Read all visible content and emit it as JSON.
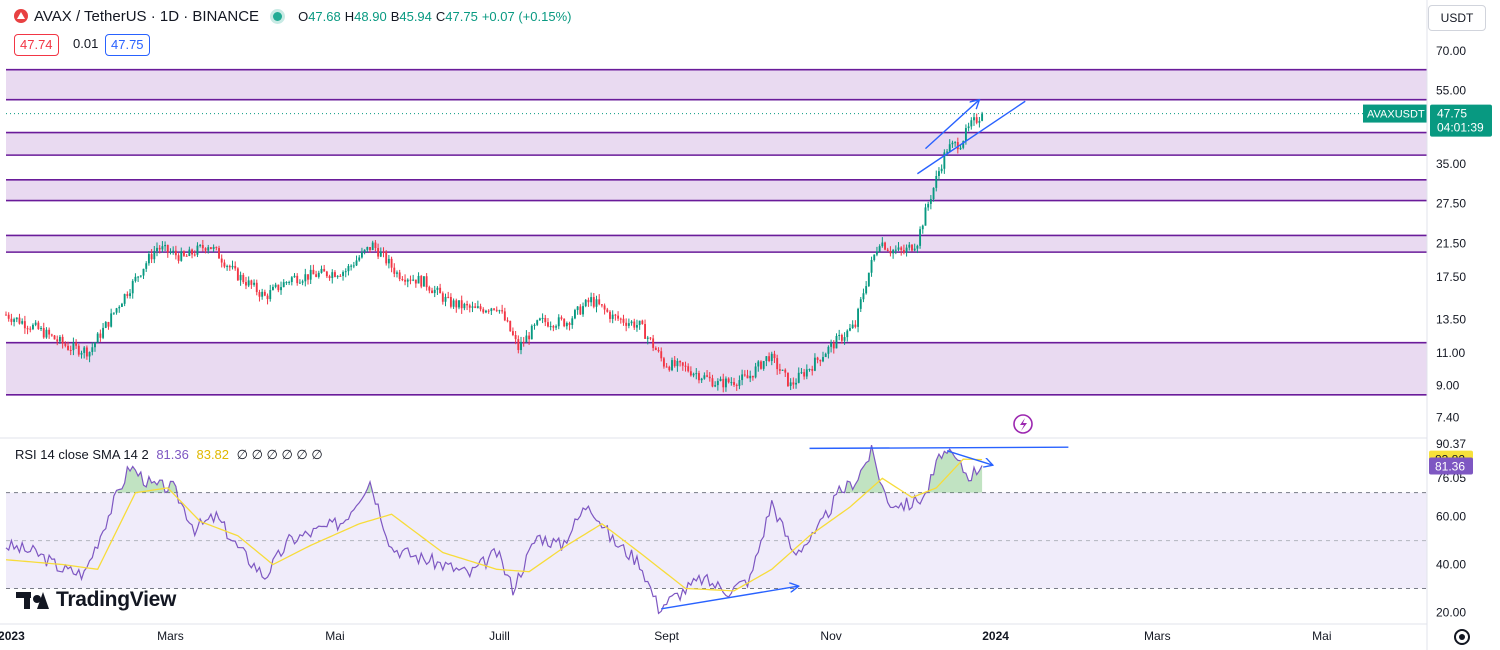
{
  "header": {
    "symbol_title": "AVAX / TetherUS · 1D · BINANCE",
    "o_label": "O",
    "o_value": "47.68",
    "h_label": "H",
    "h_value": "48.90",
    "l_label": "B",
    "l_value": "45.94",
    "c_label": "C",
    "c_value": "47.75",
    "change": "+0.07 (+0.15%)",
    "bid": "47.74",
    "spread": "0.01",
    "ask": "47.75",
    "currency": "USDT",
    "brand": "TradingView"
  },
  "colors": {
    "up": "#089981",
    "down": "#f23645",
    "zone_fill": "#e1cdec",
    "zone_line": "#6a1b9a",
    "drawing": "#2962ff",
    "rsi": "#7e57c2",
    "rsi_ma": "#f7dc3a",
    "rsi_band": "#f0ecfa"
  },
  "chart_data": [
    {
      "type": "candlestick",
      "symbol": "AVAXUSDT",
      "scale": "log",
      "price_axis_ticks": [
        7.4,
        9.0,
        11.0,
        13.5,
        17.5,
        21.5,
        27.5,
        35.0,
        55.0,
        70.0
      ],
      "time_axis_labels": [
        "2023",
        "Mars",
        "Mai",
        "Juill",
        "Sept",
        "Nov",
        "2024",
        "Mars",
        "Mai"
      ],
      "time_axis_dates": [
        "2023-01-01",
        "2023-03-01",
        "2023-05-01",
        "2023-07-01",
        "2023-09-01",
        "2023-11-01",
        "2024-01-01",
        "2024-03-01",
        "2024-05-01"
      ],
      "x_range": [
        "2022-12-30",
        "2024-06-09"
      ],
      "y_range": [
        6.6,
        75
      ],
      "last_price_label": "AVAXUSDT",
      "last_price": "47.75",
      "countdown": "04:01:39",
      "price_path": [
        {
          "date": "2022-12-30",
          "price": 13.9
        },
        {
          "date": "2023-01-10",
          "price": 12.8
        },
        {
          "date": "2023-01-22",
          "price": 11.4
        },
        {
          "date": "2023-01-30",
          "price": 11.1
        },
        {
          "date": "2023-02-06",
          "price": 13.3
        },
        {
          "date": "2023-02-15",
          "price": 16.8
        },
        {
          "date": "2023-02-24",
          "price": 21.0
        },
        {
          "date": "2023-03-06",
          "price": 19.7
        },
        {
          "date": "2023-03-15",
          "price": 21.4
        },
        {
          "date": "2023-03-25",
          "price": 17.9
        },
        {
          "date": "2023-04-05",
          "price": 15.5
        },
        {
          "date": "2023-04-15",
          "price": 17.4
        },
        {
          "date": "2023-04-25",
          "price": 17.8
        },
        {
          "date": "2023-05-05",
          "price": 18.2
        },
        {
          "date": "2023-05-15",
          "price": 21.3
        },
        {
          "date": "2023-05-24",
          "price": 17.9
        },
        {
          "date": "2023-06-03",
          "price": 17.0
        },
        {
          "date": "2023-06-12",
          "price": 15.0
        },
        {
          "date": "2023-06-22",
          "price": 14.3
        },
        {
          "date": "2023-06-30",
          "price": 14.7
        },
        {
          "date": "2023-07-08",
          "price": 11.3
        },
        {
          "date": "2023-07-16",
          "price": 13.3
        },
        {
          "date": "2023-07-26",
          "price": 13.3
        },
        {
          "date": "2023-08-04",
          "price": 15.2
        },
        {
          "date": "2023-08-12",
          "price": 13.7
        },
        {
          "date": "2023-08-22",
          "price": 13.0
        },
        {
          "date": "2023-08-31",
          "price": 10.3
        },
        {
          "date": "2023-09-08",
          "price": 10.0
        },
        {
          "date": "2023-09-20",
          "price": 9.1
        },
        {
          "date": "2023-10-01",
          "price": 9.4
        },
        {
          "date": "2023-10-09",
          "price": 10.8
        },
        {
          "date": "2023-10-17",
          "price": 9.0
        },
        {
          "date": "2023-10-25",
          "price": 10.2
        },
        {
          "date": "2023-11-03",
          "price": 11.8
        },
        {
          "date": "2023-11-10",
          "price": 13.0
        },
        {
          "date": "2023-11-16",
          "price": 19.0
        },
        {
          "date": "2023-11-19",
          "price": 21.9
        },
        {
          "date": "2023-11-23",
          "price": 20.7
        },
        {
          "date": "2023-11-28",
          "price": 20.4
        },
        {
          "date": "2023-12-03",
          "price": 21.8
        },
        {
          "date": "2023-12-09",
          "price": 30.3
        },
        {
          "date": "2023-12-14",
          "price": 38.5
        },
        {
          "date": "2023-12-19",
          "price": 40.0
        },
        {
          "date": "2023-12-23",
          "price": 44.5
        },
        {
          "date": "2023-12-27",
          "price": 47.75
        }
      ],
      "zones": [
        {
          "top": 62.5,
          "bottom": 52.0
        },
        {
          "top": 42.5,
          "bottom": 37.0
        },
        {
          "top": 31.8,
          "bottom": 28.0
        },
        {
          "top": 22.6,
          "bottom": 20.4
        },
        {
          "top": 11.7,
          "bottom": 8.5
        }
      ],
      "drawings": [
        {
          "kind": "arrow",
          "from": {
            "date": "2023-12-06",
            "price": 38.5
          },
          "to": {
            "date": "2023-12-26",
            "price": 52.0
          }
        },
        {
          "kind": "line",
          "from": {
            "date": "2023-12-03",
            "price": 33.0
          },
          "to": {
            "date": "2024-01-12",
            "price": 51.5
          }
        }
      ]
    },
    {
      "type": "line",
      "name": "RSI",
      "legend_title": "RSI 14 close SMA 14 2",
      "legend_rsi": "81.36",
      "legend_ma": "83.82",
      "legend_extra": "∅ ∅ ∅ ∅ ∅ ∅",
      "y_ticks": [
        20.0,
        40.0,
        60.0,
        76.05,
        90.37
      ],
      "y_range": [
        16,
        92
      ],
      "levels": {
        "overbought": 70,
        "middle": 50,
        "oversold": 30
      },
      "last_rsi": "81.36",
      "last_ma": "83.82",
      "rsi_path": [
        {
          "date": "2022-12-30",
          "value": 48
        },
        {
          "date": "2023-01-10",
          "value": 45
        },
        {
          "date": "2023-01-20",
          "value": 38
        },
        {
          "date": "2023-01-28",
          "value": 36
        },
        {
          "date": "2023-02-08",
          "value": 66
        },
        {
          "date": "2023-02-14",
          "value": 81
        },
        {
          "date": "2023-02-22",
          "value": 73
        },
        {
          "date": "2023-03-02",
          "value": 72
        },
        {
          "date": "2023-03-10",
          "value": 55
        },
        {
          "date": "2023-03-18",
          "value": 60
        },
        {
          "date": "2023-03-26",
          "value": 47
        },
        {
          "date": "2023-04-05",
          "value": 35
        },
        {
          "date": "2023-04-14",
          "value": 50
        },
        {
          "date": "2023-04-24",
          "value": 54
        },
        {
          "date": "2023-05-04",
          "value": 58
        },
        {
          "date": "2023-05-14",
          "value": 75
        },
        {
          "date": "2023-05-22",
          "value": 47
        },
        {
          "date": "2023-06-01",
          "value": 43
        },
        {
          "date": "2023-06-10",
          "value": 40
        },
        {
          "date": "2023-06-20",
          "value": 36
        },
        {
          "date": "2023-06-30",
          "value": 45
        },
        {
          "date": "2023-07-06",
          "value": 30
        },
        {
          "date": "2023-07-15",
          "value": 52
        },
        {
          "date": "2023-07-24",
          "value": 48
        },
        {
          "date": "2023-08-03",
          "value": 66
        },
        {
          "date": "2023-08-12",
          "value": 50
        },
        {
          "date": "2023-08-22",
          "value": 41
        },
        {
          "date": "2023-08-29",
          "value": 22
        },
        {
          "date": "2023-09-06",
          "value": 28
        },
        {
          "date": "2023-09-14",
          "value": 34
        },
        {
          "date": "2023-09-24",
          "value": 29
        },
        {
          "date": "2023-10-02",
          "value": 34
        },
        {
          "date": "2023-10-10",
          "value": 66
        },
        {
          "date": "2023-10-18",
          "value": 45
        },
        {
          "date": "2023-10-26",
          "value": 52
        },
        {
          "date": "2023-11-04",
          "value": 70
        },
        {
          "date": "2023-11-10",
          "value": 75
        },
        {
          "date": "2023-11-16",
          "value": 87
        },
        {
          "date": "2023-11-22",
          "value": 66
        },
        {
          "date": "2023-11-30",
          "value": 65
        },
        {
          "date": "2023-12-06",
          "value": 69
        },
        {
          "date": "2023-12-12",
          "value": 87
        },
        {
          "date": "2023-12-17",
          "value": 84
        },
        {
          "date": "2023-12-22",
          "value": 77
        },
        {
          "date": "2023-12-27",
          "value": 81.36
        }
      ],
      "rsi_ma_path": [
        {
          "date": "2022-12-30",
          "value": 42
        },
        {
          "date": "2023-01-20",
          "value": 40
        },
        {
          "date": "2023-02-02",
          "value": 38
        },
        {
          "date": "2023-02-16",
          "value": 70
        },
        {
          "date": "2023-02-28",
          "value": 72
        },
        {
          "date": "2023-03-12",
          "value": 58
        },
        {
          "date": "2023-03-26",
          "value": 52
        },
        {
          "date": "2023-04-08",
          "value": 40
        },
        {
          "date": "2023-04-22",
          "value": 48
        },
        {
          "date": "2023-05-10",
          "value": 57
        },
        {
          "date": "2023-05-22",
          "value": 61
        },
        {
          "date": "2023-06-10",
          "value": 45
        },
        {
          "date": "2023-06-30",
          "value": 38
        },
        {
          "date": "2023-07-12",
          "value": 37
        },
        {
          "date": "2023-07-26",
          "value": 48
        },
        {
          "date": "2023-08-08",
          "value": 57
        },
        {
          "date": "2023-08-22",
          "value": 45
        },
        {
          "date": "2023-09-08",
          "value": 30
        },
        {
          "date": "2023-09-26",
          "value": 29
        },
        {
          "date": "2023-10-10",
          "value": 38
        },
        {
          "date": "2023-10-24",
          "value": 52
        },
        {
          "date": "2023-11-08",
          "value": 64
        },
        {
          "date": "2023-11-20",
          "value": 76
        },
        {
          "date": "2023-12-01",
          "value": 68
        },
        {
          "date": "2023-12-10",
          "value": 72
        },
        {
          "date": "2023-12-20",
          "value": 84
        },
        {
          "date": "2023-12-27",
          "value": 83.82
        }
      ],
      "drawings": [
        {
          "kind": "line",
          "from": {
            "date": "2023-10-24",
            "value": 88.5
          },
          "to": {
            "date": "2024-01-28",
            "value": 89.0
          }
        },
        {
          "kind": "arrow",
          "from": {
            "date": "2023-12-14",
            "value": 87.5
          },
          "to": {
            "date": "2023-12-31",
            "value": 81.5
          }
        },
        {
          "kind": "arrow",
          "from": {
            "date": "2023-08-30",
            "value": 21.5
          },
          "to": {
            "date": "2023-10-20",
            "value": 31.0
          }
        }
      ]
    }
  ]
}
